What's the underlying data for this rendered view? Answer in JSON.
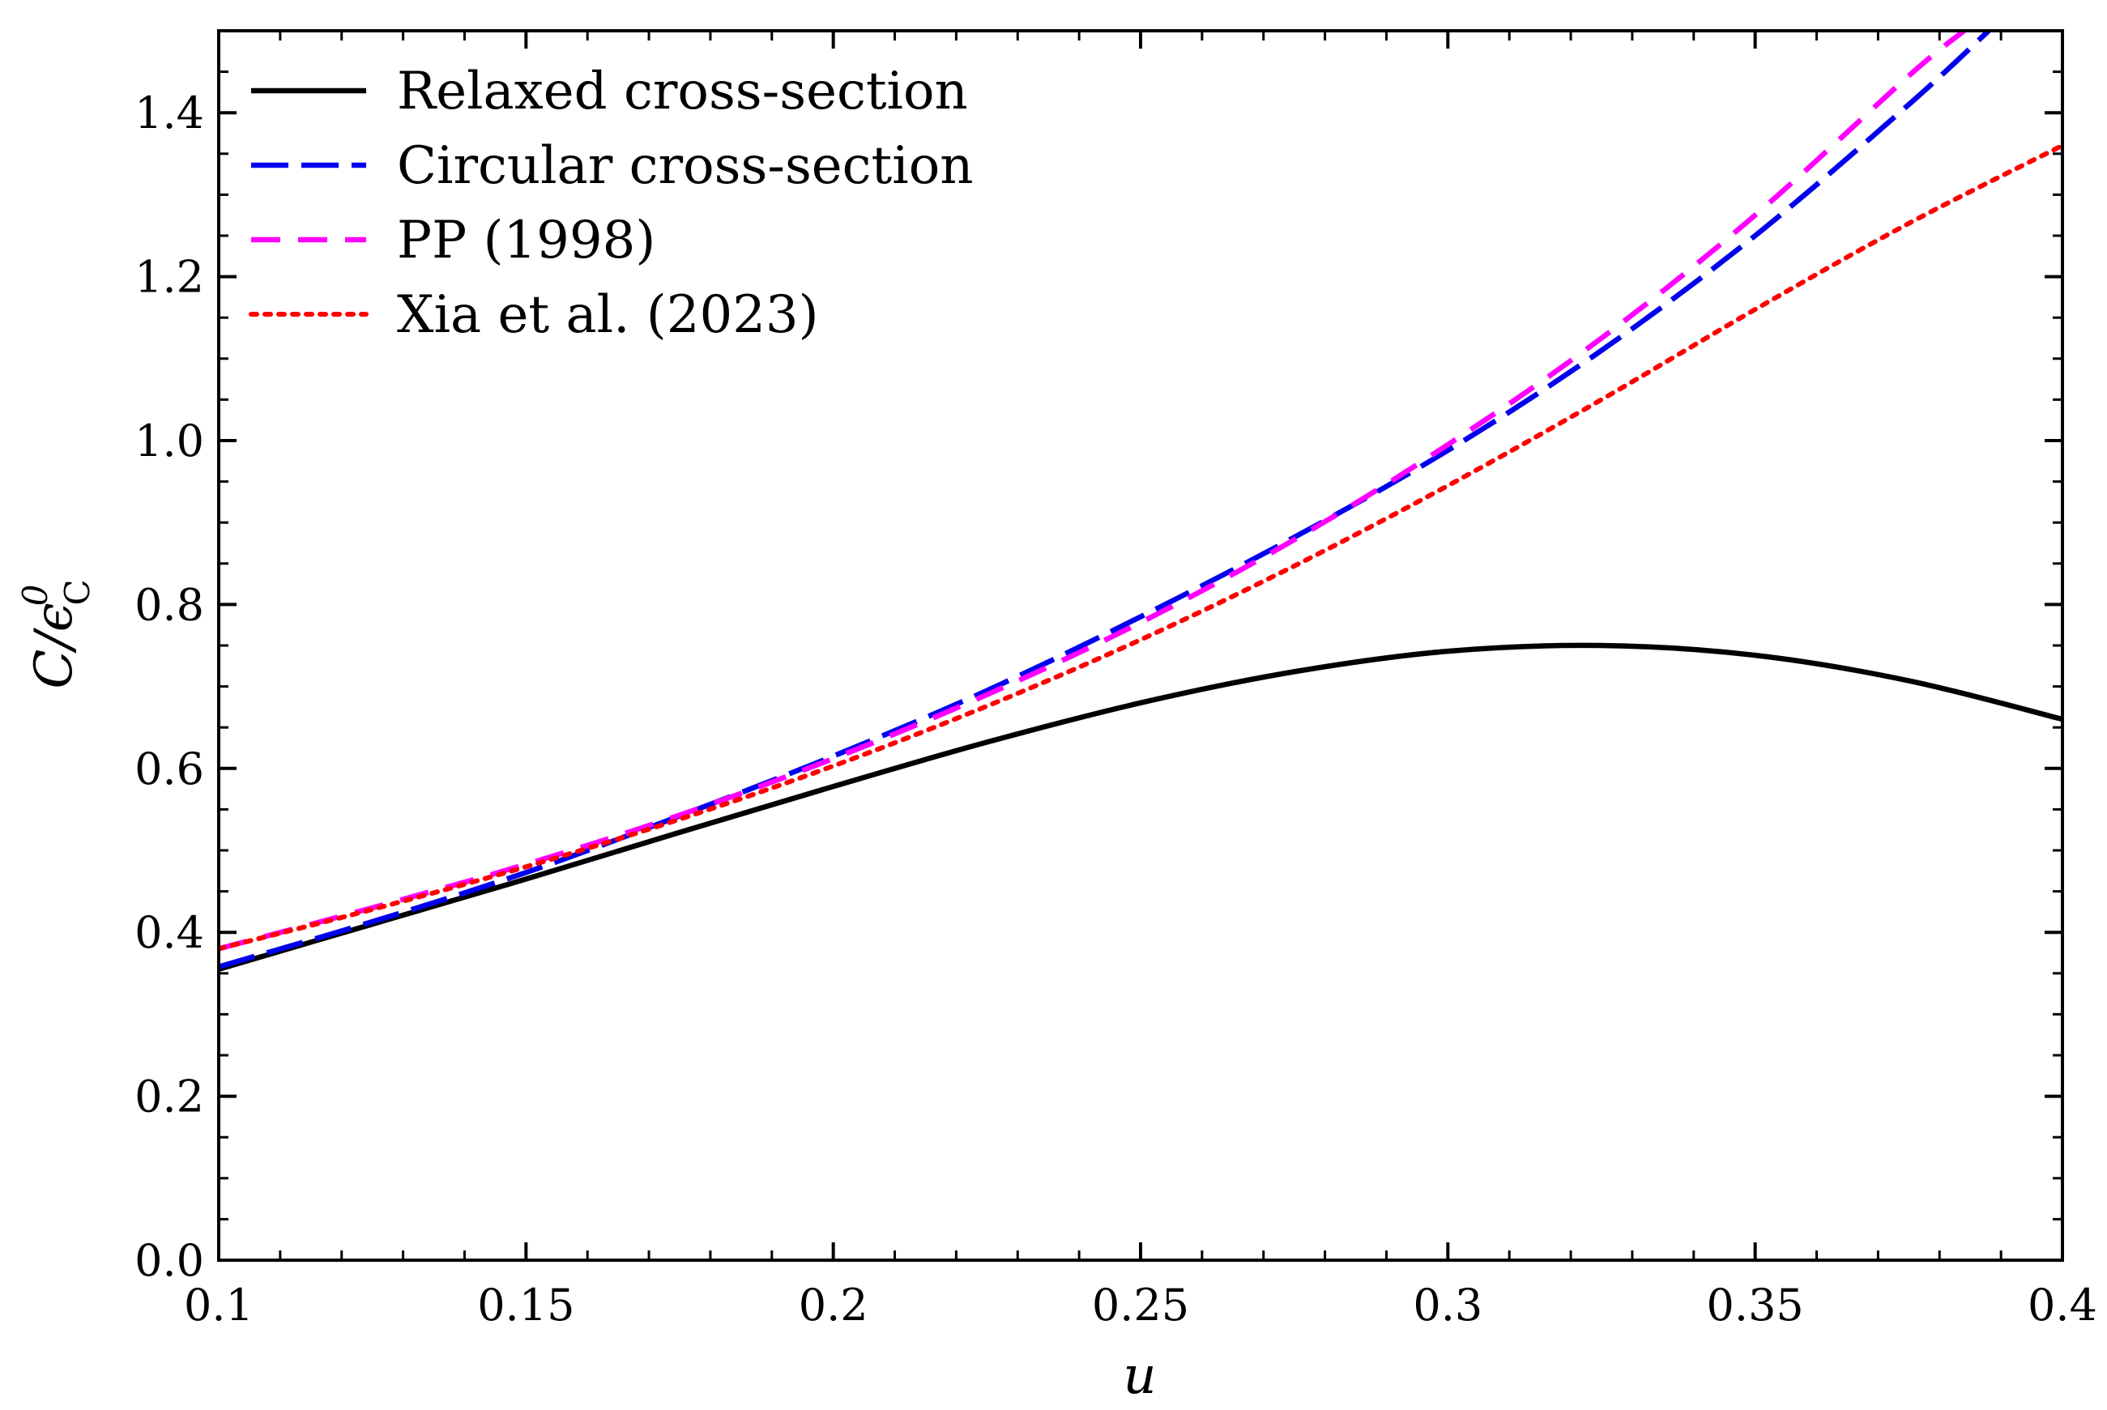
{
  "chart_data": {
    "type": "line",
    "xlabel": "u",
    "ylabel": "C/ϵ",
    "ylabel_sup": "0",
    "ylabel_sub": "C",
    "xlim": [
      0.1,
      0.4
    ],
    "ylim": [
      0.0,
      1.5
    ],
    "x_ticks": [
      0.1,
      0.15,
      0.2,
      0.25,
      0.3,
      0.35,
      0.4
    ],
    "x_tick_labels": [
      "0.1",
      "0.15",
      "0.2",
      "0.25",
      "0.3",
      "0.35",
      "0.4"
    ],
    "y_ticks": [
      0.0,
      0.2,
      0.4,
      0.6,
      0.8,
      1.0,
      1.2,
      1.4
    ],
    "y_tick_labels": [
      "0.0",
      "0.2",
      "0.4",
      "0.6",
      "0.8",
      "1.0",
      "1.2",
      "1.4"
    ],
    "grid": false,
    "legend_position": "top-left",
    "series": [
      {
        "name": "Relaxed cross-section",
        "color": "#000000",
        "style": "solid",
        "x": [
          0.1,
          0.125,
          0.15,
          0.175,
          0.2,
          0.225,
          0.25,
          0.275,
          0.3,
          0.325,
          0.35,
          0.375,
          0.4
        ],
        "y": [
          0.355,
          0.41,
          0.465,
          0.522,
          0.578,
          0.632,
          0.68,
          0.718,
          0.743,
          0.75,
          0.738,
          0.707,
          0.66
        ]
      },
      {
        "name": "Circular cross-section",
        "color": "#0000ee",
        "style": "longdash",
        "x": [
          0.1,
          0.125,
          0.15,
          0.175,
          0.2,
          0.225,
          0.25,
          0.275,
          0.3,
          0.325,
          0.35,
          0.375,
          0.388
        ],
        "y": [
          0.358,
          0.413,
          0.473,
          0.542,
          0.615,
          0.695,
          0.785,
          0.882,
          0.988,
          1.11,
          1.25,
          1.41,
          1.5
        ]
      },
      {
        "name": "PP (1998)",
        "color": "#ff00ff",
        "style": "dash",
        "x": [
          0.1,
          0.125,
          0.15,
          0.175,
          0.2,
          0.225,
          0.25,
          0.275,
          0.3,
          0.325,
          0.35,
          0.375,
          0.384
        ],
        "y": [
          0.38,
          0.43,
          0.483,
          0.543,
          0.612,
          0.69,
          0.778,
          0.879,
          0.995,
          1.125,
          1.275,
          1.445,
          1.5
        ]
      },
      {
        "name": "Xia et al. (2023)",
        "color": "#ff0000",
        "style": "dotted",
        "x": [
          0.1,
          0.125,
          0.15,
          0.175,
          0.2,
          0.225,
          0.25,
          0.275,
          0.3,
          0.325,
          0.35,
          0.375,
          0.4
        ],
        "y": [
          0.38,
          0.428,
          0.48,
          0.538,
          0.603,
          0.676,
          0.757,
          0.847,
          0.945,
          1.05,
          1.16,
          1.265,
          1.36
        ]
      }
    ]
  }
}
